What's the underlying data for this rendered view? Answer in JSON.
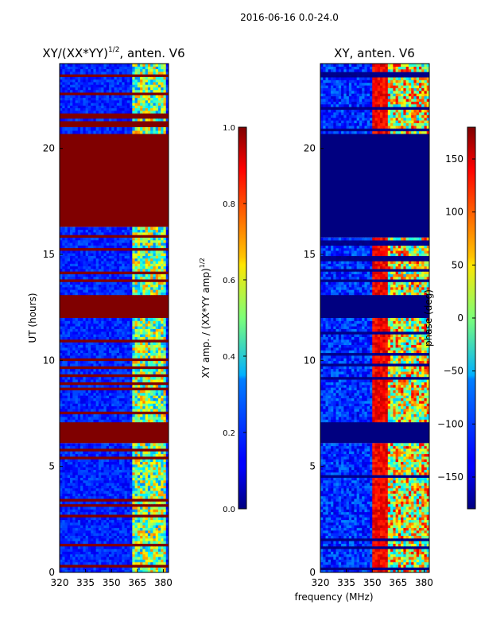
{
  "suptitle": "2016-06-16 0.0-24.0",
  "xlabel": "frequency (MHz)",
  "chart_data": [
    {
      "type": "heatmap",
      "title": "XY/(XX*YY)^{1/2}, anten. V6",
      "title_text": "XY/(XX*YY)",
      "title_exp": "1/2",
      "title_suffix": ", anten. V6",
      "xlabel": "frequency (MHz)",
      "ylabel": "UT (hours)",
      "xlim": [
        320,
        383
      ],
      "ylim": [
        0,
        24
      ],
      "xticks": [
        320,
        335,
        350,
        365,
        380
      ],
      "yticks": [
        0,
        5,
        10,
        15,
        20
      ],
      "colorbar": {
        "label_text": "XY amp. / (XX*YY amp)",
        "label_exp": "1/2",
        "range": [
          0,
          1
        ],
        "ticks": [
          0.0,
          0.2,
          0.4,
          0.6,
          0.8,
          1.0
        ],
        "tick_labels": [
          "0.0",
          "0.2",
          "0.4",
          "0.6",
          "0.8",
          "1.0"
        ]
      },
      "value_bands": [
        {
          "t0": 0,
          "t1": 6.1,
          "level": "low, noisy"
        },
        {
          "t0": 6.1,
          "t1": 7.1,
          "level": 1.0
        },
        {
          "t0": 7.1,
          "t1": 12.0,
          "level": "low, noisy"
        },
        {
          "t0": 12.0,
          "t1": 13.1,
          "level": 1.0
        },
        {
          "t0": 13.1,
          "t1": 16.3,
          "level": "low, noisy"
        },
        {
          "t0": 16.3,
          "t1": 20.7,
          "level": 1.0
        },
        {
          "t0": 20.7,
          "t1": 21.0,
          "level": "low, noisy"
        },
        {
          "t0": 21.0,
          "t1": 21.3,
          "level": 1.0
        },
        {
          "t0": 21.3,
          "t1": 24,
          "level": "low, noisy"
        }
      ]
    },
    {
      "type": "heatmap",
      "title": "XY, anten. V6",
      "xlabel": "frequency (MHz)",
      "ylabel": "",
      "xlim": [
        320,
        383
      ],
      "ylim": [
        0,
        24
      ],
      "xticks": [
        320,
        335,
        350,
        365,
        380
      ],
      "yticks": [
        0,
        5,
        10,
        15,
        20
      ],
      "colorbar": {
        "label_text": "phase (deg)",
        "range": [
          -180,
          180
        ],
        "ticks": [
          150,
          100,
          50,
          0,
          -50,
          -100,
          -150
        ],
        "tick_labels": [
          "150",
          "100",
          "50",
          "0",
          "−50",
          "−100",
          "−150"
        ]
      },
      "value_bands": [
        {
          "t0": 0,
          "t1": 6.1,
          "level": "phase -180..180"
        },
        {
          "t0": 6.1,
          "t1": 7.1,
          "level": -180
        },
        {
          "t0": 7.1,
          "t1": 12.0,
          "level": "phase -180..180"
        },
        {
          "t0": 12.0,
          "t1": 13.1,
          "level": -180
        },
        {
          "t0": 13.1,
          "t1": 15.8,
          "level": "phase -180..180"
        },
        {
          "t0": 15.8,
          "t1": 20.7,
          "level": -180
        },
        {
          "t0": 20.7,
          "t1": 24,
          "level": "phase -180..180"
        }
      ]
    }
  ]
}
